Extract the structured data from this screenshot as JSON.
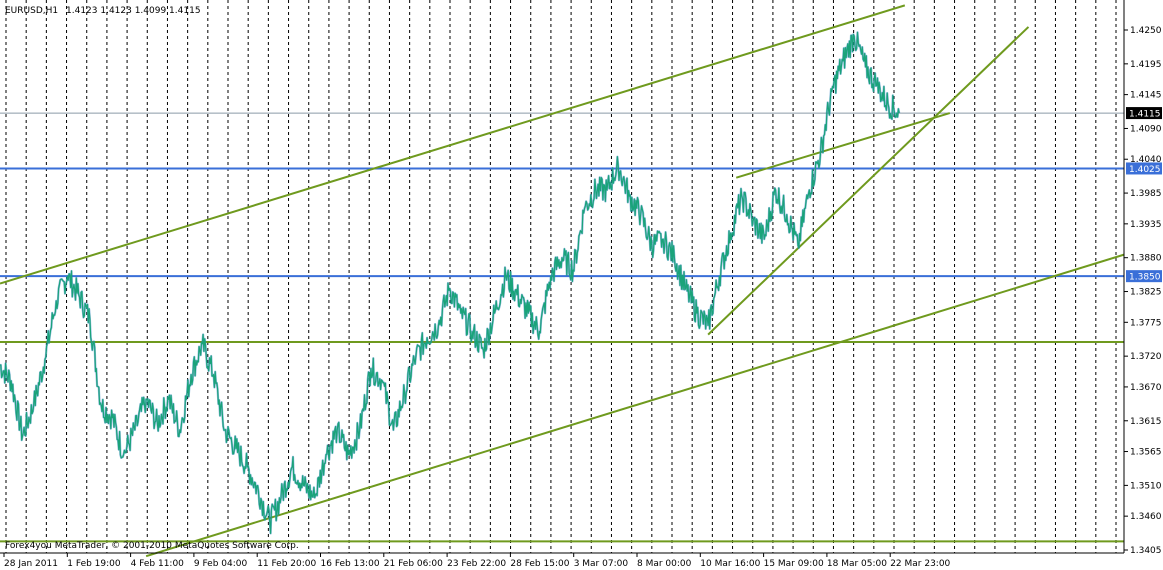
{
  "header": {
    "symbol": "EURUSD,H1",
    "ohlc": "1.4123 1.4123 1.4099 1.4115"
  },
  "footer": {
    "copyright": "Forex4you MetaTrader, © 2001-2010 MetaQuotes Software Corp."
  },
  "colors": {
    "background": "#ffffff",
    "series": "#1aa37a",
    "series_alt": "#2e7fbf",
    "trendline": "#6f9a1e",
    "support_line": "#3a6fd8",
    "grid": "#000000",
    "price_tag": "#000000"
  },
  "chart_data": {
    "type": "line",
    "title": "EURUSD,H1",
    "ylim": [
      1.3395,
      1.4285
    ],
    "yticks": [
      1.425,
      1.4195,
      1.4145,
      1.409,
      1.404,
      1.3985,
      1.3935,
      1.388,
      1.3825,
      1.3775,
      1.372,
      1.367,
      1.3615,
      1.3565,
      1.351,
      1.346,
      1.3405
    ],
    "ytick_labels": [
      "1.4250",
      "1.4195",
      "1.4145",
      "1.4090",
      "1.4040",
      "1.3985",
      "1.3935",
      "1.3880",
      "1.3825",
      "1.3775",
      "1.3720",
      "1.3670",
      "1.3615",
      "1.3565",
      "1.3510",
      "1.3460",
      "1.3405"
    ],
    "xticks": [
      "28 Jan 2011",
      "1 Feb 19:00",
      "4 Feb 11:00",
      "9 Feb 04:00",
      "11 Feb 20:00",
      "16 Feb 13:00",
      "21 Feb 06:00",
      "23 Feb 22:00",
      "28 Feb 15:00",
      "3 Mar 07:00",
      "8 Mar 00:00",
      "10 Mar 16:00",
      "15 Mar 09:00",
      "18 Mar 05:00",
      "22 Mar 23:00"
    ],
    "x_range": [
      0,
      100
    ],
    "grid": "vertical dotted",
    "current_price": "1.4115",
    "marked_levels": [
      {
        "label": "1.4025",
        "value": 1.4025,
        "kind": "horizontal"
      },
      {
        "label": "1.3850",
        "value": 1.385,
        "kind": "horizontal"
      }
    ],
    "horizontal_lines": [
      1.3743,
      1.3419
    ],
    "trendlines": [
      {
        "x": [
          0.0,
          80.5
        ],
        "y": [
          1.3838,
          1.429
        ]
      },
      {
        "x": [
          13.0,
          100.0
        ],
        "y": [
          1.3395,
          1.3885
        ]
      },
      {
        "x": [
          17.5,
          72.5
        ],
        "y": [
          1.3743,
          1.3743
        ]
      },
      {
        "x": [
          63.0,
          91.5
        ],
        "y": [
          1.3755,
          1.4255
        ]
      },
      {
        "x": [
          65.5,
          84.5
        ],
        "y": [
          1.401,
          1.4115
        ]
      }
    ],
    "series": [
      {
        "x": [
          0,
          1,
          2,
          3,
          4,
          5,
          6,
          7,
          8,
          9,
          10,
          11,
          12,
          13,
          14,
          15,
          16,
          17,
          18,
          19,
          20,
          21,
          22,
          23,
          24,
          25,
          26,
          27,
          28,
          29,
          30,
          31,
          32,
          33,
          34,
          35,
          36,
          37,
          38,
          39,
          40,
          41,
          42,
          43,
          44,
          45,
          46,
          47,
          48,
          49,
          50,
          51,
          52,
          53,
          54,
          55,
          56,
          57,
          58,
          59,
          60,
          61,
          62,
          63,
          64,
          65,
          66,
          67,
          68,
          69,
          70,
          71,
          72,
          73,
          74,
          75,
          76,
          77,
          78,
          79,
          80
        ],
        "y": [
          1.3705,
          1.368,
          1.359,
          1.364,
          1.3715,
          1.381,
          1.385,
          1.382,
          1.378,
          1.364,
          1.362,
          1.356,
          1.36,
          1.365,
          1.361,
          1.365,
          1.36,
          1.369,
          1.374,
          1.369,
          1.36,
          1.357,
          1.354,
          1.35,
          1.345,
          1.349,
          1.354,
          1.351,
          1.349,
          1.356,
          1.36,
          1.356,
          1.36,
          1.37,
          1.368,
          1.36,
          1.366,
          1.372,
          1.375,
          1.377,
          1.383,
          1.379,
          1.376,
          1.373,
          1.379,
          1.385,
          1.382,
          1.379,
          1.376,
          1.385,
          1.388,
          1.386,
          1.396,
          1.399,
          1.399,
          1.403,
          1.398,
          1.395,
          1.39,
          1.391,
          1.388,
          1.383,
          1.379,
          1.377,
          1.385,
          1.392,
          1.398,
          1.394,
          1.391,
          1.399,
          1.395,
          1.39,
          1.399,
          1.405,
          1.415,
          1.42,
          1.424,
          1.419,
          1.416,
          1.413,
          1.4115
        ]
      }
    ]
  }
}
